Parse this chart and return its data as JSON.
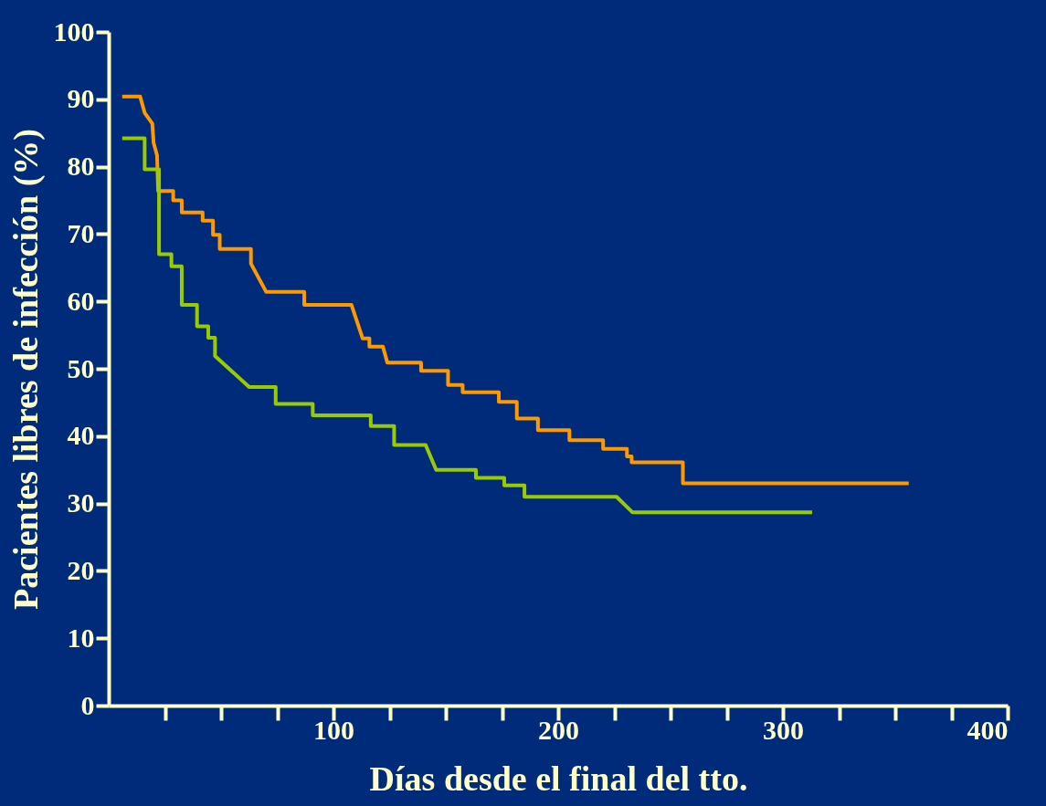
{
  "chart_data": {
    "type": "line",
    "xlabel": "Días desde el final del tto.",
    "ylabel": "Pacientes libres de infección  (%)",
    "xlim": [
      0,
      400
    ],
    "xticks": [
      {
        "value": 25,
        "label": null
      },
      {
        "value": 50,
        "label": null
      },
      {
        "value": 75,
        "label": null
      },
      100,
      {
        "value": 125,
        "label": null
      },
      {
        "value": 150,
        "label": null
      },
      {
        "value": 175,
        "label": null
      },
      200,
      {
        "value": 225,
        "label": null
      },
      {
        "value": 250,
        "label": null
      },
      {
        "value": 275,
        "label": null
      },
      300,
      {
        "value": 325,
        "label": null
      },
      {
        "value": 350,
        "label": null
      },
      {
        "value": 375,
        "label": null
      },
      400
    ],
    "ylim": [
      0,
      100
    ],
    "yticks": [
      0,
      10,
      20,
      30,
      40,
      50,
      60,
      70,
      80,
      90,
      100
    ],
    "grid": false,
    "line_style": "solid",
    "marker": "none",
    "series": [
      {
        "color": "#ff9900",
        "x": [
          6,
          14,
          16,
          19.4,
          20,
          21.5,
          22,
          28.7,
          28.7,
          32.5,
          32.5,
          41.8,
          41.8,
          46.4,
          46.4,
          49.4,
          49.4,
          63.3,
          63.3,
          70.1,
          87,
          87,
          108,
          113,
          116,
          116,
          122,
          124,
          139,
          139,
          151,
          151,
          157.5,
          157.5,
          173.6,
          173.6,
          181.6,
          181.6,
          191,
          191,
          205,
          205,
          220,
          220,
          230.6,
          230.6,
          232.7,
          232.7,
          255.5,
          255.5,
          356
        ],
        "values": [
          90.4,
          90.4,
          88,
          86.4,
          83.5,
          81.7,
          76.4,
          76.4,
          75,
          75,
          73.2,
          73.2,
          72,
          72,
          69.9,
          69.9,
          67.8,
          67.8,
          65.6,
          61.4,
          61.4,
          59.5,
          59.5,
          54.5,
          54.5,
          53.3,
          53.3,
          50.9,
          50.9,
          49.7,
          49.7,
          47.6,
          47.6,
          46.5,
          46.5,
          45.1,
          45.1,
          42.6,
          42.6,
          40.9,
          40.9,
          39.4,
          39.4,
          38.1,
          38.1,
          37,
          37,
          36.1,
          36.1,
          33,
          33
        ]
      },
      {
        "color": "#99cc00",
        "x": [
          6,
          16,
          16,
          22.4,
          22.4,
          27.9,
          27.9,
          32.5,
          32.5,
          39.3,
          39.3,
          44.3,
          44.3,
          47.3,
          47.3,
          62.5,
          74.3,
          74.3,
          90.8,
          90.8,
          116.6,
          116.6,
          127,
          127,
          141,
          145.7,
          163.4,
          163.4,
          176,
          176,
          185,
          185,
          226,
          233,
          313
        ],
        "values": [
          84.2,
          84.2,
          79.6,
          79.6,
          67,
          67,
          65.2,
          65.2,
          59.5,
          59.5,
          56.3,
          56.3,
          54.6,
          54.6,
          51.9,
          47.3,
          47.3,
          44.8,
          44.8,
          43.1,
          43.1,
          41.5,
          41.5,
          38.7,
          38.7,
          35,
          35,
          33.8,
          33.8,
          32.7,
          32.7,
          31,
          31,
          28.7,
          28.7
        ]
      }
    ]
  }
}
